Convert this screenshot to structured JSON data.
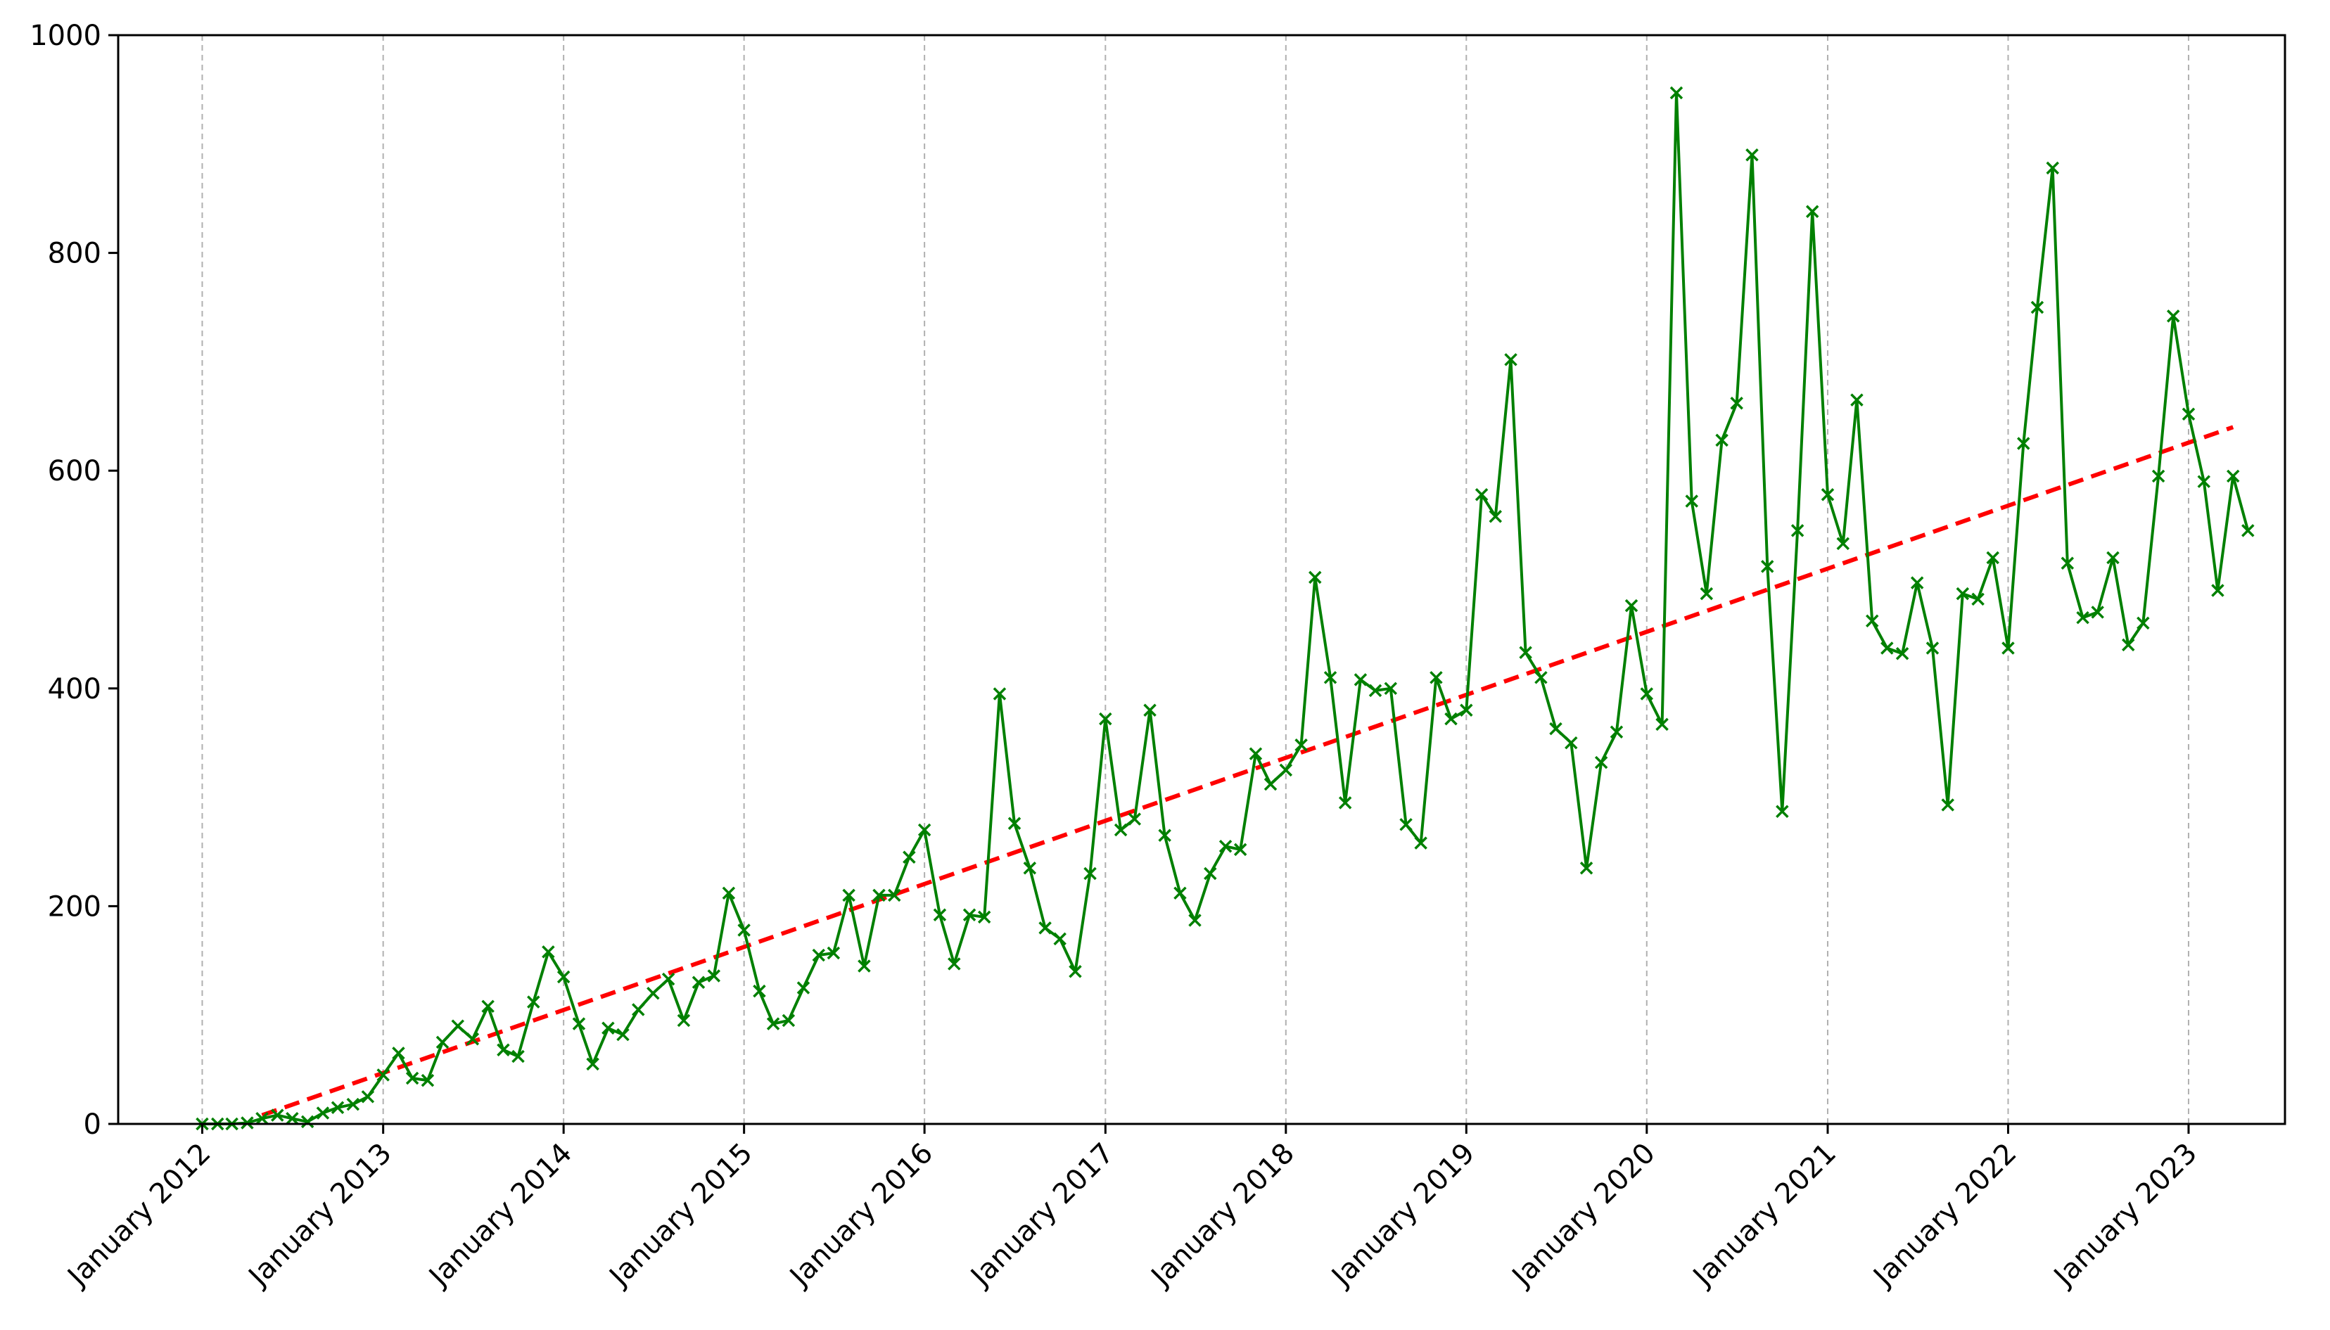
{
  "chart_data": {
    "type": "line",
    "title": "",
    "xlabel": "",
    "ylabel": "",
    "ylim": [
      0,
      1000
    ],
    "xlim": [
      "2011-07-15",
      "2023-07-15"
    ],
    "grid": "vertical dashed",
    "legend": "none",
    "y_ticks": [
      "0",
      "200",
      "400",
      "600",
      "800",
      "1000"
    ],
    "x_ticks": [
      {
        "date": "2012-01-01",
        "label": "January 2012"
      },
      {
        "date": "2013-01-01",
        "label": "January 2013"
      },
      {
        "date": "2014-01-01",
        "label": "January 2014"
      },
      {
        "date": "2015-01-01",
        "label": "January 2015"
      },
      {
        "date": "2016-01-01",
        "label": "January 2016"
      },
      {
        "date": "2017-01-01",
        "label": "January 2017"
      },
      {
        "date": "2018-01-01",
        "label": "January 2018"
      },
      {
        "date": "2019-01-01",
        "label": "January 2019"
      },
      {
        "date": "2020-01-01",
        "label": "January 2020"
      },
      {
        "date": "2021-01-01",
        "label": "January 2021"
      },
      {
        "date": "2022-01-01",
        "label": "January 2022"
      },
      {
        "date": "2023-01-01",
        "label": "January 2023"
      }
    ],
    "series": [
      {
        "color": "#008000",
        "marker": "x",
        "style": "solid",
        "start": "2012-01",
        "frequency": "monthly",
        "values": [
          0,
          0,
          0,
          1,
          5,
          8,
          5,
          2,
          10,
          15,
          18,
          25,
          45,
          65,
          42,
          40,
          75,
          90,
          78,
          108,
          68,
          62,
          112,
          158,
          135,
          92,
          55,
          88,
          82,
          105,
          120,
          133,
          95,
          130,
          136,
          212,
          178,
          122,
          92,
          95,
          125,
          155,
          157,
          210,
          145,
          210,
          210,
          245,
          270,
          192,
          147,
          192,
          190,
          395,
          276,
          235,
          180,
          170,
          140,
          230,
          372,
          270,
          280,
          380,
          265,
          212,
          187,
          230,
          255,
          252,
          340,
          312,
          325,
          348,
          502,
          410,
          295,
          408,
          398,
          400,
          275,
          258,
          410,
          372,
          380,
          578,
          558,
          702,
          433,
          410,
          363,
          350,
          235,
          332,
          360,
          476,
          395,
          367,
          947,
          572,
          487,
          628,
          662,
          890,
          512,
          287,
          545,
          838,
          578,
          533,
          665,
          462,
          437,
          432,
          497,
          437,
          293,
          487,
          482,
          520,
          437,
          625,
          750,
          878,
          515,
          465,
          470,
          520,
          440,
          460,
          595,
          742,
          652,
          590,
          490,
          595,
          545
        ]
      },
      {
        "color": "#ff0000",
        "style": "dashed",
        "start": "2012-05",
        "end": "2023-04",
        "values": [
          8,
          640
        ]
      }
    ]
  }
}
